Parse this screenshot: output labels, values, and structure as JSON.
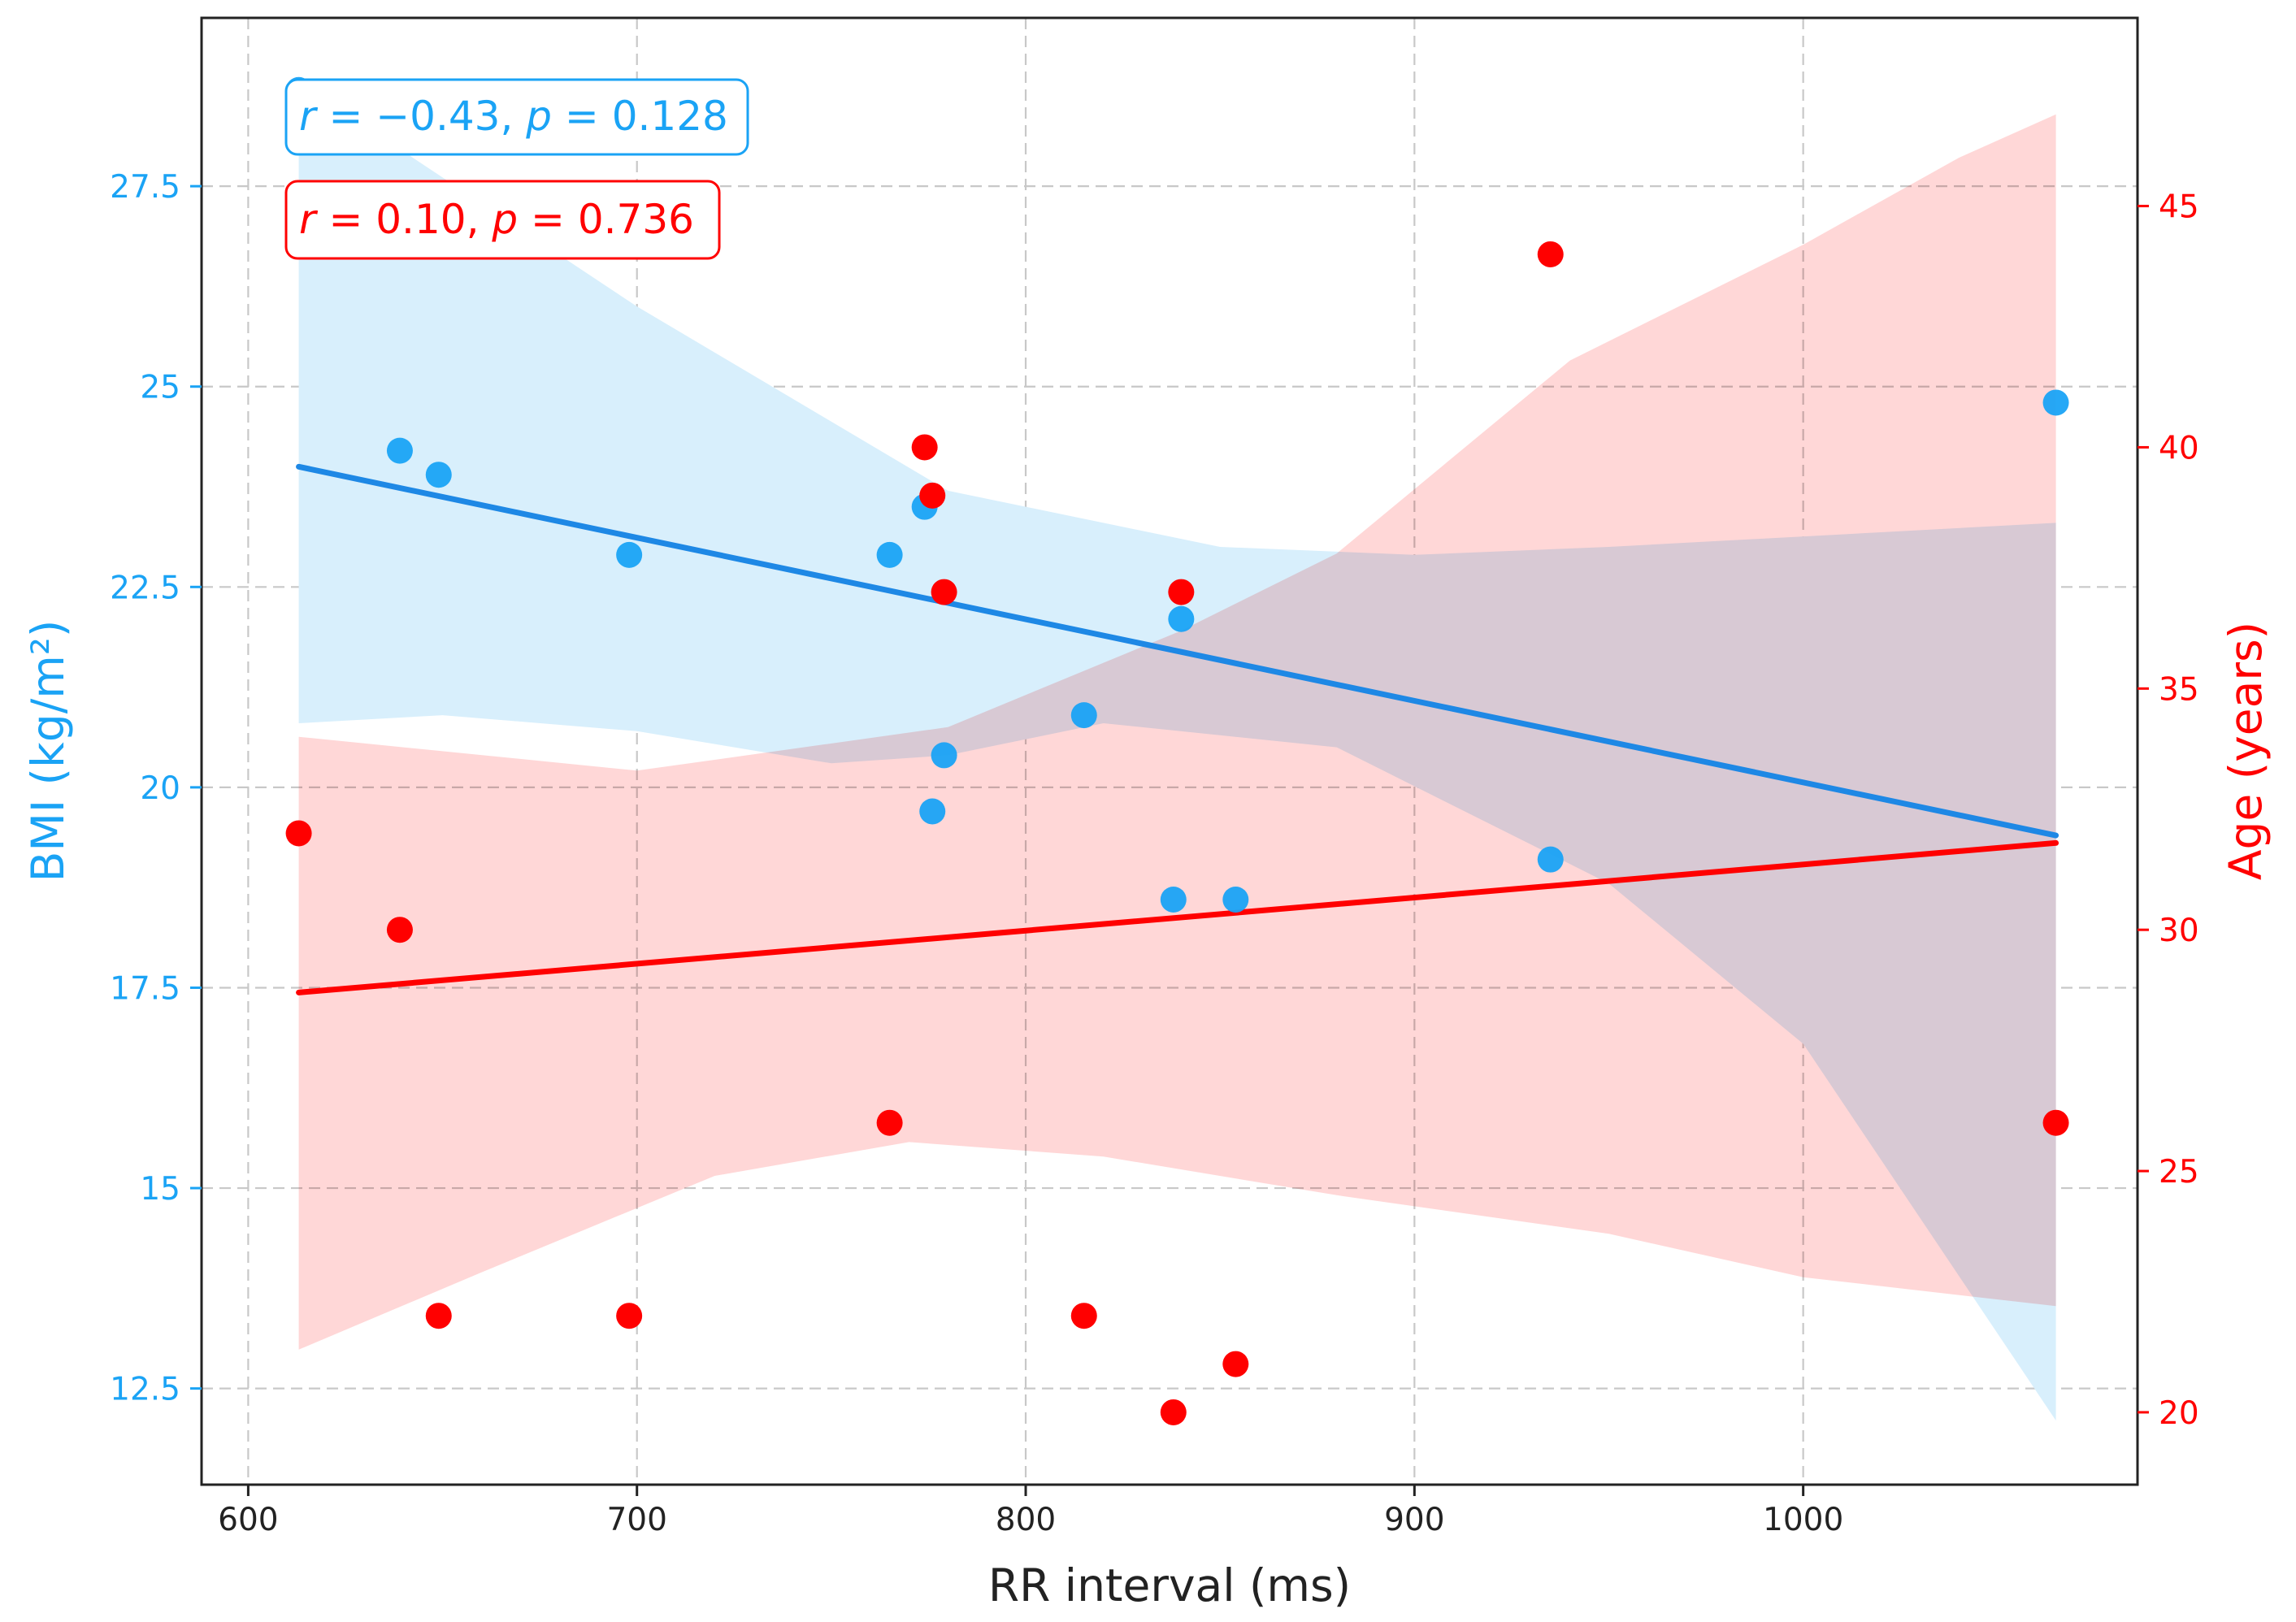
{
  "chart_data": {
    "type": "scatter",
    "xlabel": "RR interval (ms)",
    "ylabel_left": "BMI (kg/m²)",
    "ylabel_right": "Age (years)",
    "xlim": [
      588,
      1086
    ],
    "ylim_left": [
      11.3,
      29.6
    ],
    "ylim_right": [
      18.5,
      48.9
    ],
    "x_ticks": [
      600,
      700,
      800,
      900,
      1000
    ],
    "x_tick_labels": [
      "600",
      "700",
      "800",
      "900",
      "1000"
    ],
    "y_left_ticks": [
      12.5,
      15,
      17.5,
      20,
      22.5,
      25,
      27.5
    ],
    "y_left_tick_labels": [
      "12.5",
      "15",
      "17.5",
      "20",
      "22.5",
      "25",
      "27.5"
    ],
    "y_right_ticks": [
      20,
      25,
      30,
      35,
      40,
      45
    ],
    "y_right_tick_labels": [
      "20",
      "25",
      "30",
      "35",
      "40",
      "45"
    ],
    "grid": true,
    "colors": {
      "bmi": "#1aa3f5",
      "bmi_line": "#1e88e5",
      "bmi_band": "#d8effc",
      "age": "#ff0000",
      "age_band": "#ffd3d3",
      "axis": "#222222"
    },
    "series": [
      {
        "name": "BMI",
        "axis": "left",
        "x": [
          613,
          639,
          649,
          698,
          765,
          774,
          776,
          779,
          815,
          838,
          840,
          854,
          935,
          1065
        ],
        "y": [
          28.7,
          24.2,
          23.9,
          22.9,
          22.9,
          23.5,
          19.7,
          20.4,
          20.9,
          18.6,
          22.1,
          18.6,
          19.1,
          24.8
        ],
        "fit": {
          "x": [
            613,
            1065
          ],
          "y": [
            24.0,
            19.4
          ]
        },
        "ci_upper": [
          [
            613,
            28.8
          ],
          [
            700,
            26.0
          ],
          [
            780,
            23.7
          ],
          [
            850,
            23.0
          ],
          [
            900,
            22.9
          ],
          [
            950,
            23.0
          ],
          [
            1065,
            23.3
          ]
        ],
        "ci_lower": [
          [
            613,
            20.8
          ],
          [
            650,
            20.9
          ],
          [
            700,
            20.7
          ],
          [
            750,
            20.3
          ],
          [
            780,
            20.4
          ],
          [
            820,
            20.8
          ],
          [
            880,
            20.5
          ],
          [
            950,
            18.8
          ],
          [
            1000,
            16.8
          ],
          [
            1065,
            12.1
          ]
        ],
        "annotation": {
          "r": "−0.43",
          "p": "0.128"
        }
      },
      {
        "name": "Age",
        "axis": "right",
        "x": [
          613,
          639,
          649,
          698,
          765,
          774,
          776,
          779,
          815,
          838,
          840,
          854,
          935,
          1065
        ],
        "y": [
          32,
          30,
          22,
          22,
          26,
          40,
          39,
          37,
          22,
          20,
          37,
          21,
          44,
          26
        ],
        "fit": {
          "x": [
            613,
            1065
          ],
          "y": [
            28.7,
            31.8
          ]
        },
        "ci_upper": [
          [
            613,
            34.0
          ],
          [
            700,
            33.3
          ],
          [
            780,
            34.2
          ],
          [
            840,
            36.2
          ],
          [
            880,
            37.8
          ],
          [
            940,
            41.8
          ],
          [
            1000,
            44.2
          ],
          [
            1040,
            46.0
          ],
          [
            1065,
            46.9
          ]
        ],
        "ci_lower": [
          [
            613,
            21.3
          ],
          [
            660,
            22.9
          ],
          [
            720,
            24.9
          ],
          [
            770,
            25.6
          ],
          [
            820,
            25.3
          ],
          [
            880,
            24.5
          ],
          [
            950,
            23.7
          ],
          [
            1000,
            22.8
          ],
          [
            1065,
            22.2
          ]
        ],
        "annotation": {
          "r": "0.10",
          "p": "0.736"
        }
      }
    ],
    "annotations": [
      {
        "series": "BMI",
        "r_symbol": "r",
        "r_value": "−0.43",
        "p_symbol": "p",
        "p_value": "0.128"
      },
      {
        "series": "Age",
        "r_symbol": "r",
        "r_value": "0.10",
        "p_symbol": "p",
        "p_value": "0.736"
      }
    ]
  }
}
